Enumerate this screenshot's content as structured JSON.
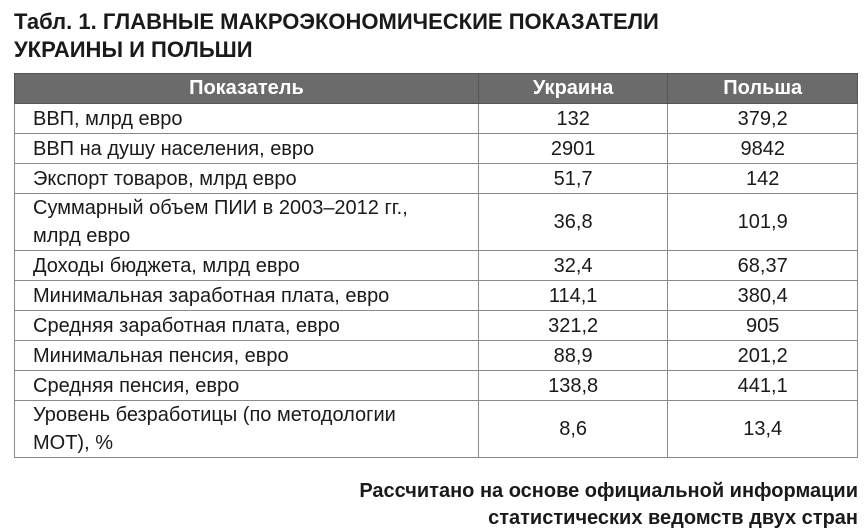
{
  "title": [
    "Табл. 1. ГЛАВНЫЕ МАКРОЭКОНОМИЧЕСКИЕ ПОКАЗАТЕЛИ",
    "УКРАИНЫ И ПОЛЬШИ"
  ],
  "table": {
    "header": [
      "Показатель",
      "Украина",
      "Польша"
    ],
    "rows": [
      [
        "ВВП, млрд евро",
        "132",
        "379,2"
      ],
      [
        "ВВП на душу населения, евро",
        "2901",
        "9842"
      ],
      [
        "Экспорт товаров, млрд евро",
        "51,7",
        "142"
      ],
      [
        "Суммарный объем ПИИ в 2003–2012 гг., млрд евро",
        "36,8",
        "101,9"
      ],
      [
        "Доходы бюджета, млрд евро",
        "32,4",
        "68,37"
      ],
      [
        "Минимальная заработная плата, евро",
        "114,1",
        "380,4"
      ],
      [
        "Средняя заработная плата, евро",
        "321,2",
        "905"
      ],
      [
        "Минимальная пенсия, евро",
        "88,9",
        "201,2"
      ],
      [
        "Средняя пенсия, евро",
        "138,8",
        "441,1"
      ],
      [
        "Уровень безработицы (по методологии МОТ), %",
        "8,6",
        "13,4"
      ]
    ]
  },
  "source": [
    "Рассчитано на основе официальной информации",
    "статистических ведомств двух стран"
  ]
}
